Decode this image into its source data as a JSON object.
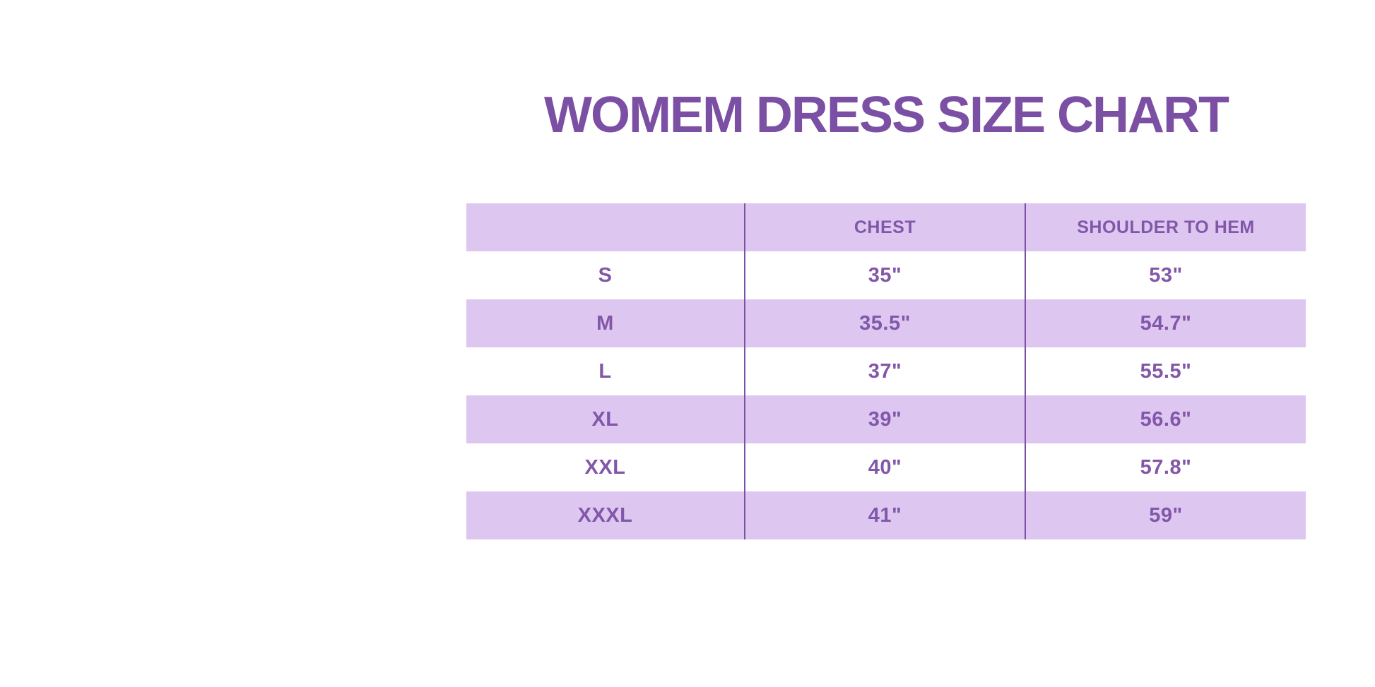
{
  "page": {
    "title": "WOMEM DRESS SIZE CHART"
  },
  "colors": {
    "title_text": "#7b4fa3",
    "table_text": "#8257a9",
    "row_alt_background": "#ddc7f0",
    "row_background": "#ffffff",
    "column_divider": "#7b50a5",
    "page_background": "#ffffff"
  },
  "table": {
    "headers": [
      "",
      "CHEST",
      "SHOULDER TO HEM"
    ],
    "rows": [
      {
        "size": "S",
        "chest": "35\"",
        "shoulder_to_hem": "53\""
      },
      {
        "size": "M",
        "chest": "35.5\"",
        "shoulder_to_hem": "54.7\""
      },
      {
        "size": "L",
        "chest": "37\"",
        "shoulder_to_hem": "55.5\""
      },
      {
        "size": "XL",
        "chest": "39\"",
        "shoulder_to_hem": "56.6\""
      },
      {
        "size": "XXL",
        "chest": "40\"",
        "shoulder_to_hem": "57.8\""
      },
      {
        "size": "XXXL",
        "chest": "41\"",
        "shoulder_to_hem": "59\""
      }
    ]
  }
}
